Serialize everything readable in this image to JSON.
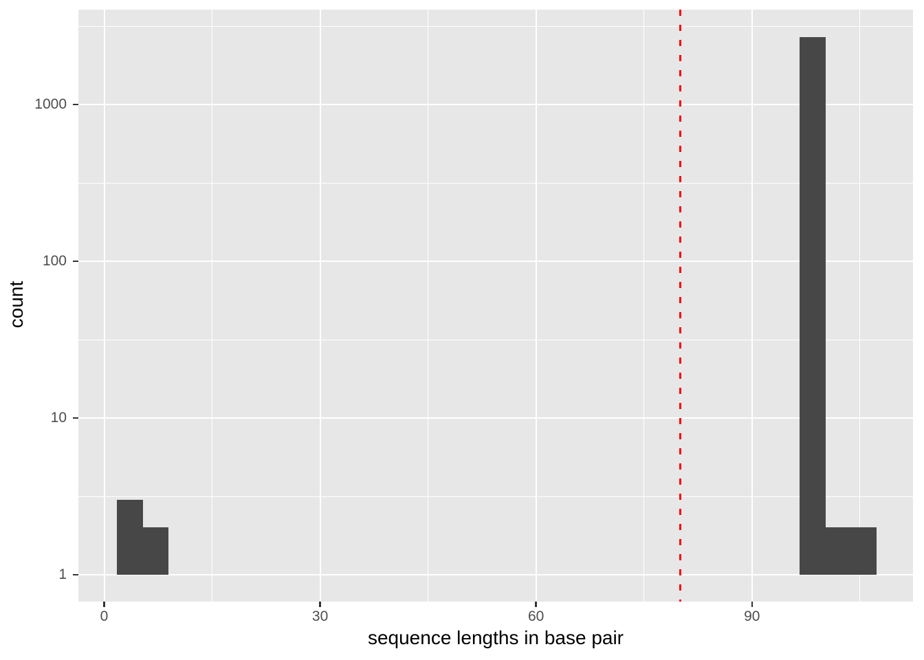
{
  "chart_data": {
    "type": "bar",
    "subtype": "histogram",
    "title": "",
    "xlabel": "sequence lengths in base pair",
    "ylabel": "count",
    "x_axis": {
      "tick_values": [
        0,
        30,
        60,
        90
      ],
      "tick_labels": [
        "0",
        "30",
        "60",
        "90"
      ],
      "minor_tick_values": [
        15,
        45,
        75,
        105
      ],
      "range": [
        -3.6,
        112.4
      ],
      "grid": true
    },
    "y_axis": {
      "scale": "log10",
      "tick_values": [
        1,
        10,
        100,
        1000
      ],
      "tick_labels": [
        "1",
        "10",
        "100",
        "1000"
      ],
      "minor_tick_values": [
        3.162,
        31.62,
        316.2,
        3162
      ],
      "range": [
        1,
        3900
      ],
      "grid": true
    },
    "bins": [
      {
        "x_start": 1.8,
        "x_end": 5.35,
        "count": 3
      },
      {
        "x_start": 5.35,
        "x_end": 8.9,
        "count": 2
      },
      {
        "x_start": 96.65,
        "x_end": 100.2,
        "count": 2700
      },
      {
        "x_start": 100.2,
        "x_end": 103.75,
        "count": 2
      },
      {
        "x_start": 103.75,
        "x_end": 107.3,
        "count": 2
      }
    ],
    "reference_line": {
      "orientation": "vertical",
      "x": 80,
      "style": "dashed",
      "color": "#FF0000"
    },
    "legend": "none",
    "style": {
      "panel_background": "#E7E7E7",
      "grid_color": "#FFFFFF",
      "bar_fill": "#474747",
      "tick_label_color": "#4D4D4D",
      "axis_title_color": "#000000",
      "tick_mark_color": "#333333",
      "figure_background": "#FFFFFF"
    }
  }
}
